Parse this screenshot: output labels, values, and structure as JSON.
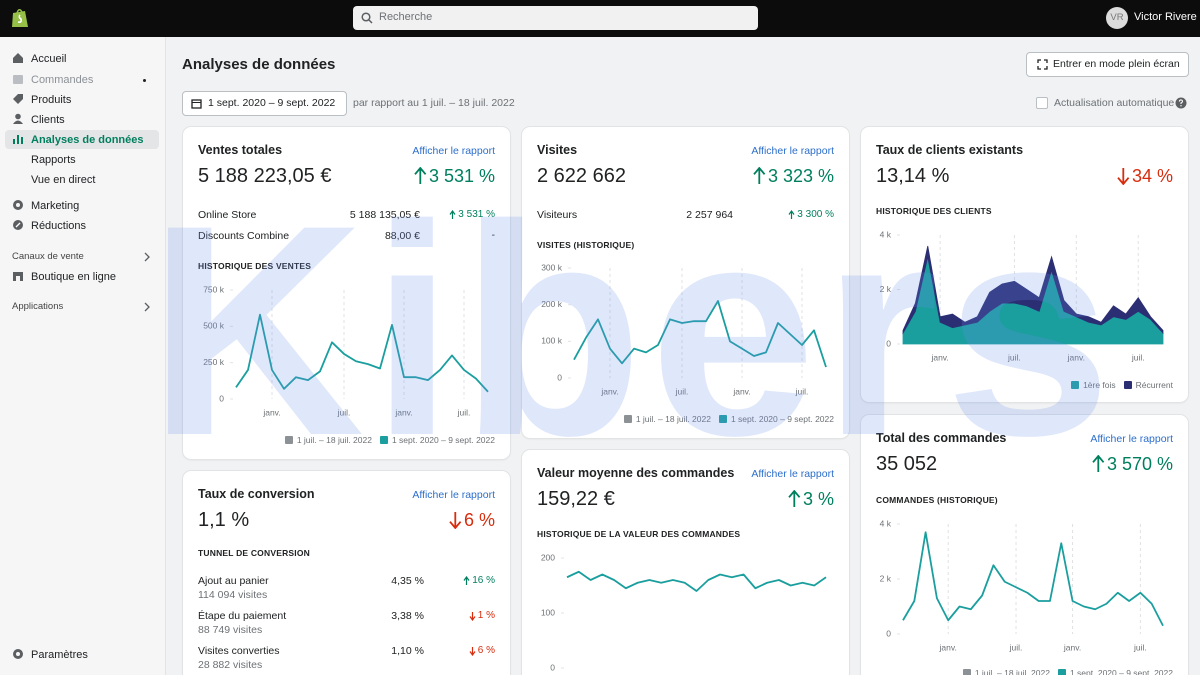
{
  "topbar": {
    "search_placeholder": "Recherche",
    "user_initials": "VR",
    "user_name": "Victor Rivere"
  },
  "sidebar": {
    "main": [
      "Accueil",
      "Commandes",
      "Produits",
      "Clients",
      "Analyses de données"
    ],
    "analytics_sub": [
      "Rapports",
      "Vue en direct"
    ],
    "more": [
      "Marketing",
      "Réductions"
    ],
    "sales_channels": {
      "title": "Canaux de vente",
      "items": [
        "Boutique en ligne"
      ]
    },
    "apps": {
      "title": "Applications"
    },
    "settings": "Paramètres"
  },
  "header": {
    "title": "Analyses de données",
    "fullscreen_button": "Entrer en mode plein écran",
    "date_range": "1 sept. 2020 – 9 sept. 2022",
    "comparison": "par rapport au 1 juil. – 18 juil. 2022",
    "auto_refresh": "Actualisation automatique"
  },
  "watermark": "Kibers",
  "cards": [
    {
      "title": "Ventes totales",
      "link": "Afficher le rapport",
      "value": "5 188 223,05 €",
      "change": "3 531 %",
      "trend": "up",
      "rows": [
        {
          "label": "Online Store",
          "value": "5 188 135,05 €",
          "change": "3 531 %",
          "trend": "up"
        },
        {
          "label": "Discounts Combine",
          "value": "88,00 €",
          "change": "-"
        }
      ],
      "chart": {
        "type": "line",
        "title": "HISTORIQUE DES VENTES",
        "ylim": [
          0,
          750000
        ],
        "yticks": [
          0,
          {
            "value": 250000,
            "label": "250 k"
          },
          {
            "value": 500000,
            "label": "500 k"
          },
          {
            "value": 750000,
            "label": "750 k"
          }
        ],
        "xticks": [
          {
            "value": 3,
            "label": "janv."
          },
          {
            "value": 9,
            "label": "juil."
          },
          {
            "value": 14,
            "label": "janv."
          },
          {
            "value": 19,
            "label": "juil."
          }
        ],
        "color": "#1a9e9e",
        "values": [
          80000,
          200000,
          580000,
          200000,
          70000,
          150000,
          130000,
          190000,
          390000,
          310000,
          260000,
          240000,
          210000,
          510000,
          150000,
          150000,
          130000,
          200000,
          300000,
          200000,
          140000,
          50000
        ],
        "legend": [
          {
            "label": "1 juil. – 18 juil. 2022",
            "color": "#8c9196"
          },
          {
            "label": "1 sept. 2020 – 9 sept. 2022",
            "color": "#1a9e9e"
          }
        ]
      }
    },
    {
      "title": "Visites",
      "link": "Afficher le rapport",
      "value": "2 622 662",
      "change": "3 323 %",
      "trend": "up",
      "rows": [
        {
          "label": "Visiteurs",
          "value": "2 257 964",
          "change": "3 300 %",
          "trend": "up"
        }
      ],
      "chart": {
        "type": "line",
        "title": "VISITES (HISTORIQUE)",
        "ylim": [
          0,
          300000
        ],
        "yticks": [
          0,
          {
            "value": 100000,
            "label": "100 k"
          },
          {
            "value": 200000,
            "label": "200 k"
          },
          {
            "value": 300000,
            "label": "300 k"
          }
        ],
        "xticks": [
          {
            "value": 3,
            "label": "janv."
          },
          {
            "value": 9,
            "label": "juil."
          },
          {
            "value": 14,
            "label": "janv."
          },
          {
            "value": 19,
            "label": "juil."
          }
        ],
        "color": "#1a9e9e",
        "values": [
          50000,
          110000,
          160000,
          80000,
          40000,
          80000,
          70000,
          90000,
          160000,
          150000,
          155000,
          155000,
          210000,
          100000,
          80000,
          60000,
          70000,
          150000,
          120000,
          90000,
          130000,
          30000
        ],
        "legend": [
          {
            "label": "1 juil. – 18 juil. 2022",
            "color": "#8c9196"
          },
          {
            "label": "1 sept. 2020 – 9 sept. 2022",
            "color": "#1a9e9e"
          }
        ]
      }
    },
    {
      "title": "Taux de clients existants",
      "value": "13,14 %",
      "change": "34 %",
      "trend": "down",
      "chart": {
        "type": "area",
        "stacked": true,
        "title": "HISTORIQUE DES CLIENTS",
        "ylim": [
          0,
          4000
        ],
        "yticks": [
          0,
          {
            "value": 2000,
            "label": "2 k"
          },
          {
            "value": 4000,
            "label": "4 k"
          }
        ],
        "xticks": [
          {
            "value": 3,
            "label": "janv."
          },
          {
            "value": 9,
            "label": "juil."
          },
          {
            "value": 14,
            "label": "janv."
          },
          {
            "value": 19,
            "label": "juil."
          }
        ],
        "series": [
          {
            "name": "1ère fois",
            "color": "#1a9e9e",
            "values": [
              400,
              1200,
              3200,
              800,
              600,
              700,
              800,
              1200,
              1500,
              1500,
              1400,
              1200,
              2700,
              1200,
              1000,
              800,
              700,
              1000,
              900,
              1200,
              900,
              400
            ]
          },
          {
            "name": "Récurrent",
            "color": "#2b2e73",
            "values": [
              100,
              300,
              400,
              200,
              500,
              100,
              200,
              700,
              700,
              800,
              600,
              500,
              500,
              400,
              100,
              200,
              100,
              400,
              200,
              500,
              100,
              100
            ]
          }
        ]
      }
    },
    {
      "title": "Taux de conversion",
      "link": "Afficher le rapport",
      "value": "1,1 %",
      "change": "6 %",
      "trend": "down",
      "section": "TUNNEL DE CONVERSION",
      "funnel": [
        {
          "label": "Ajout au panier",
          "sub": "114 094 visites",
          "value": "4,35 %",
          "change": "16 %",
          "trend": "up"
        },
        {
          "label": "Étape du paiement",
          "sub": "88 749 visites",
          "value": "3,38 %",
          "change": "1 %",
          "trend": "down"
        },
        {
          "label": "Visites converties",
          "sub": "28 882 visites",
          "value": "1,10 %",
          "change": "6 %",
          "trend": "down"
        }
      ]
    },
    {
      "title": "Valeur moyenne des commandes",
      "link": "Afficher le rapport",
      "value": "159,22 €",
      "change": "3 %",
      "trend": "up",
      "chart": {
        "type": "line",
        "title": "HISTORIQUE DE LA VALEUR DES COMMANDES",
        "ylim": [
          0,
          200
        ],
        "yticks": [
          0,
          100,
          200
        ],
        "color": "#1a9e9e",
        "values": [
          165,
          175,
          160,
          170,
          160,
          145,
          155,
          160,
          155,
          160,
          155,
          140,
          160,
          170,
          165,
          170,
          145,
          155,
          160,
          150,
          155,
          150,
          165
        ]
      }
    },
    {
      "title": "Total des commandes",
      "link": "Afficher le rapport",
      "value": "35 052",
      "change": "3 570 %",
      "trend": "up",
      "chart": {
        "type": "line",
        "title": "COMMANDES (HISTORIQUE)",
        "ylim": [
          0,
          4000
        ],
        "yticks": [
          0,
          {
            "value": 2000,
            "label": "2 k"
          },
          {
            "value": 4000,
            "label": "4 k"
          }
        ],
        "xticks": [
          {
            "value": 4,
            "label": "janv."
          },
          {
            "value": 10,
            "label": "juil."
          },
          {
            "value": 15,
            "label": "janv."
          },
          {
            "value": 21,
            "label": "juil."
          }
        ],
        "color": "#1a9e9e",
        "values": [
          500,
          1200,
          3700,
          1300,
          500,
          1000,
          900,
          1400,
          2500,
          1900,
          1700,
          1500,
          1200,
          1200,
          3300,
          1200,
          1000,
          900,
          1100,
          1500,
          1200,
          1500,
          1100,
          300
        ],
        "legend": [
          {
            "label": "1 juil. – 18 juil. 2022",
            "color": "#8c9196"
          },
          {
            "label": "1 sept. 2020 – 9 sept. 2022",
            "color": "#1a9e9e"
          }
        ]
      }
    }
  ]
}
